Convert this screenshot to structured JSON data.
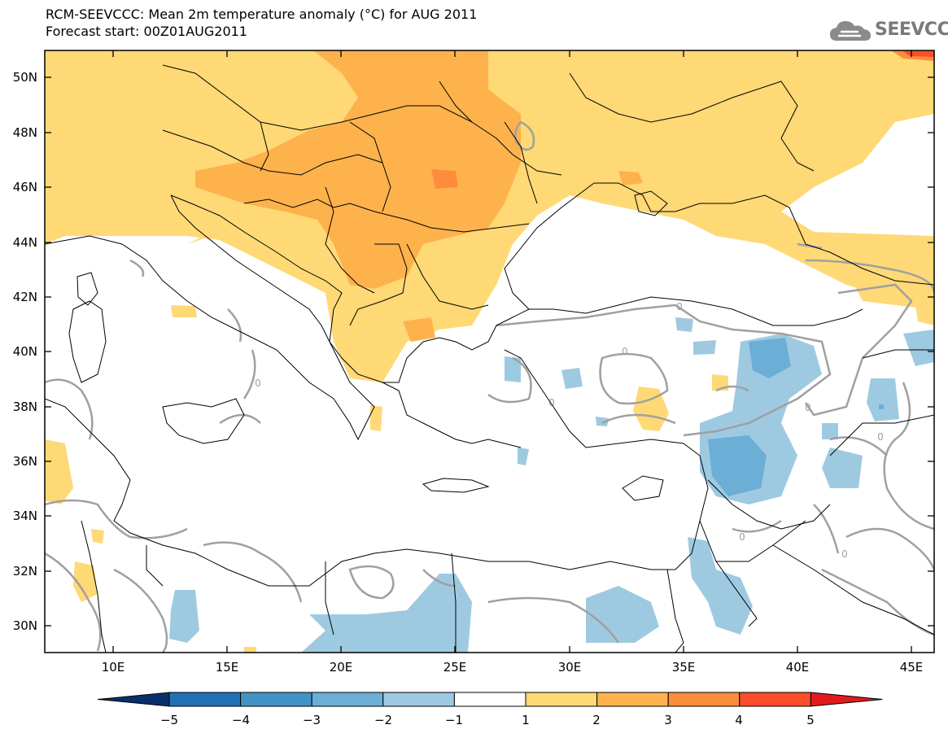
{
  "header": {
    "title": "RCM-SEEVCCC: Mean 2m temperature anomaly (°C) for AUG 2011",
    "subtitle": "Forecast start: 00Z01AUG2011",
    "logo_text": "SEEVCCC"
  },
  "map": {
    "region": "South-East Europe, Eastern Mediterranean and Middle East",
    "lon_range": [
      7,
      46
    ],
    "lat_range": [
      29,
      51
    ],
    "lon_ticks": [
      "10E",
      "15E",
      "20E",
      "25E",
      "30E",
      "35E",
      "40E",
      "45E"
    ],
    "lat_ticks": [
      "50N",
      "48N",
      "46N",
      "44N",
      "42N",
      "40N",
      "38N",
      "36N",
      "34N",
      "32N",
      "30N"
    ],
    "contour_label": "0",
    "contour_color": "#a0a0a0",
    "ocean_color": "#ffffff",
    "coast_color": "#000000"
  },
  "colorbar": {
    "labels": [
      "−5",
      "−4",
      "−3",
      "−2",
      "−1",
      "1",
      "2",
      "3",
      "4",
      "5"
    ],
    "colors": [
      "#08306b",
      "#2171b5",
      "#4292c6",
      "#6baed6",
      "#9ecae1",
      "#ffffff",
      "#fed976",
      "#feb24c",
      "#fd8d3c",
      "#fc4e2a",
      "#e31a1c"
    ]
  }
}
